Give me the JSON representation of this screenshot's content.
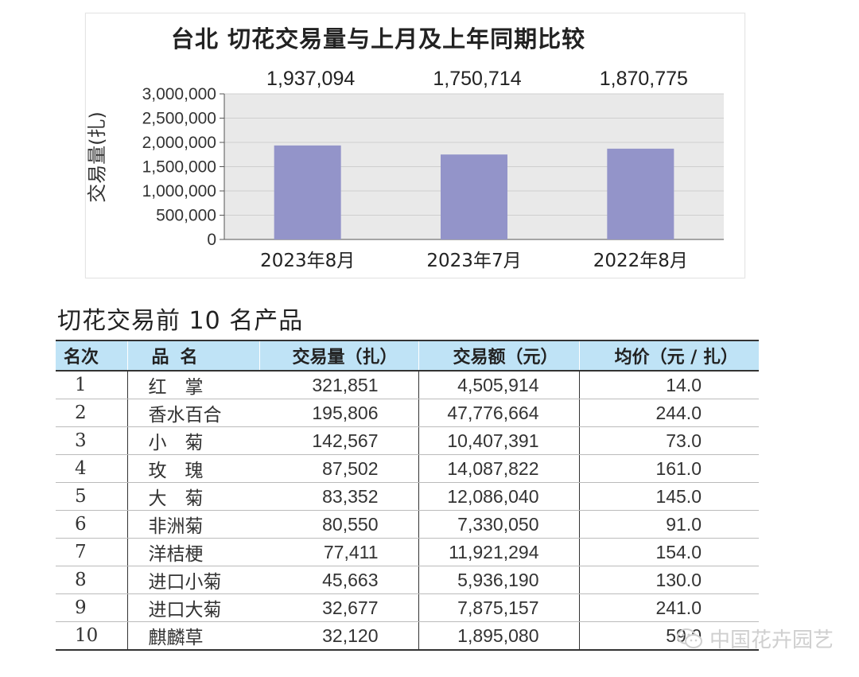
{
  "chart_data": {
    "type": "bar",
    "title": "台北 切花交易量与上月及上年同期比较",
    "ylabel": "交易量(扎)",
    "xlabel": "",
    "categories": [
      "2023年8月",
      "2023年7月",
      "2022年8月"
    ],
    "values": [
      1937094,
      1750714,
      1870775
    ],
    "value_labels": [
      "1,937,094",
      "1,750,714",
      "1,870,775"
    ],
    "ylim": [
      0,
      3000000
    ],
    "yticks": [
      0,
      500000,
      1000000,
      1500000,
      2000000,
      2500000,
      3000000
    ],
    "ytick_labels": [
      "0",
      "500,000",
      "1,000,000",
      "1,500,000",
      "2,000,000",
      "2,500,000",
      "3,000,000"
    ],
    "grid": true,
    "bar_color": "#9394c9",
    "plot_background": "#e9e9e9"
  },
  "table": {
    "title": "切花交易前 10 名产品",
    "headers": {
      "rank": "名次",
      "name": "品名",
      "volume": "交易量（扎）",
      "amount": "交易额（元）",
      "price": "均价（元 / 扎）"
    },
    "rows": [
      {
        "rank": "1",
        "name": "红　掌",
        "volume": "321,851",
        "amount": "4,505,914",
        "price": "14.0"
      },
      {
        "rank": "2",
        "name": "香水百合",
        "volume": "195,806",
        "amount": "47,776,664",
        "price": "244.0"
      },
      {
        "rank": "3",
        "name": "小　菊",
        "volume": "142,567",
        "amount": "10,407,391",
        "price": "73.0"
      },
      {
        "rank": "4",
        "name": "玫　瑰",
        "volume": "87,502",
        "amount": "14,087,822",
        "price": "161.0"
      },
      {
        "rank": "5",
        "name": "大　菊",
        "volume": "83,352",
        "amount": "12,086,040",
        "price": "145.0"
      },
      {
        "rank": "6",
        "name": "非洲菊",
        "volume": "80,550",
        "amount": "7,330,050",
        "price": "91.0"
      },
      {
        "rank": "7",
        "name": "洋桔梗",
        "volume": "77,411",
        "amount": "11,921,294",
        "price": "154.0"
      },
      {
        "rank": "8",
        "name": "进口小菊",
        "volume": "45,663",
        "amount": "5,936,190",
        "price": "130.0"
      },
      {
        "rank": "9",
        "name": "进口大菊",
        "volume": "32,677",
        "amount": "7,875,157",
        "price": "241.0"
      },
      {
        "rank": "10",
        "name": "麒麟草",
        "volume": "32,120",
        "amount": "1,895,080",
        "price": "59.0"
      }
    ],
    "header_color": "#bfe3f6"
  },
  "watermark": {
    "text": "中国花卉园艺",
    "icon": "wechat-icon"
  }
}
